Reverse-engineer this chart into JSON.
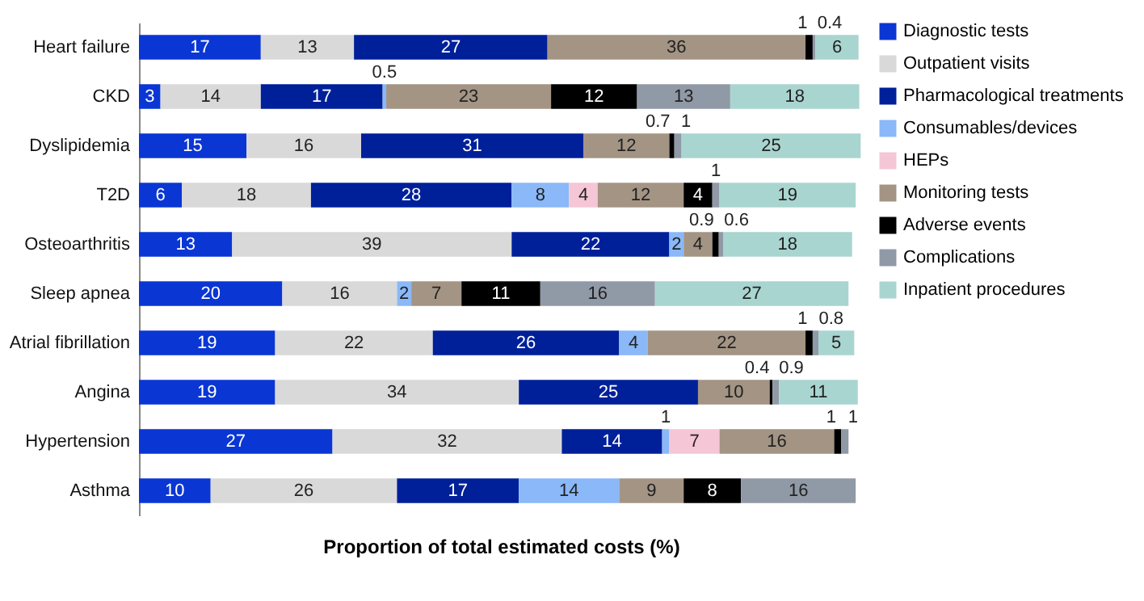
{
  "chart_data": {
    "type": "bar",
    "orientation": "horizontal",
    "stacked": true,
    "xlabel": "Proportion of total estimated costs (%)",
    "categories": [
      "Heart failure",
      "CKD",
      "Dyslipidemia",
      "T2D",
      "Osteoarthritis",
      "Sleep apnea",
      "Atrial fibrillation",
      "Angina",
      "Hypertension",
      "Asthma"
    ],
    "series": [
      {
        "name": "Diagnostic tests",
        "color": "#0a36d4",
        "values": [
          17,
          3,
          15,
          6,
          13,
          20,
          19,
          19,
          27,
          10
        ]
      },
      {
        "name": "Outpatient visits",
        "color": "#d9d9d9",
        "values": [
          13,
          14,
          16,
          18,
          39,
          16,
          22,
          34,
          32,
          26
        ]
      },
      {
        "name": "Pharmacological treatments",
        "color": "#00209a",
        "values": [
          27,
          17,
          31,
          28,
          22,
          null,
          26,
          25,
          14,
          17
        ]
      },
      {
        "name": "Consumables/devices",
        "color": "#8ab8f8",
        "values": [
          null,
          0.5,
          null,
          8,
          2,
          2,
          4,
          null,
          1,
          14
        ]
      },
      {
        "name": "HEPs",
        "color": "#f5c6d6",
        "values": [
          null,
          null,
          null,
          4,
          null,
          null,
          null,
          null,
          7,
          null
        ]
      },
      {
        "name": "Monitoring tests",
        "color": "#a39484",
        "values": [
          36,
          23,
          12,
          12,
          4,
          7,
          22,
          10,
          16,
          9
        ]
      },
      {
        "name": "Adverse events",
        "color": "#000000",
        "values": [
          1,
          12,
          0.7,
          4,
          0.9,
          11,
          1,
          0.4,
          1,
          8
        ]
      },
      {
        "name": "Complications",
        "color": "#9099a6",
        "values": [
          0.4,
          13,
          1,
          1,
          0.6,
          16,
          0.8,
          0.9,
          1,
          16
        ]
      },
      {
        "name": "Inpatient procedures",
        "color": "#a9d5d0",
        "values": [
          6,
          18,
          25,
          19,
          18,
          27,
          5,
          11,
          null,
          null
        ]
      }
    ],
    "xlim": [
      0,
      101
    ],
    "tick_labels": "y",
    "data_labels": true,
    "legend": "right",
    "grid": false
  }
}
